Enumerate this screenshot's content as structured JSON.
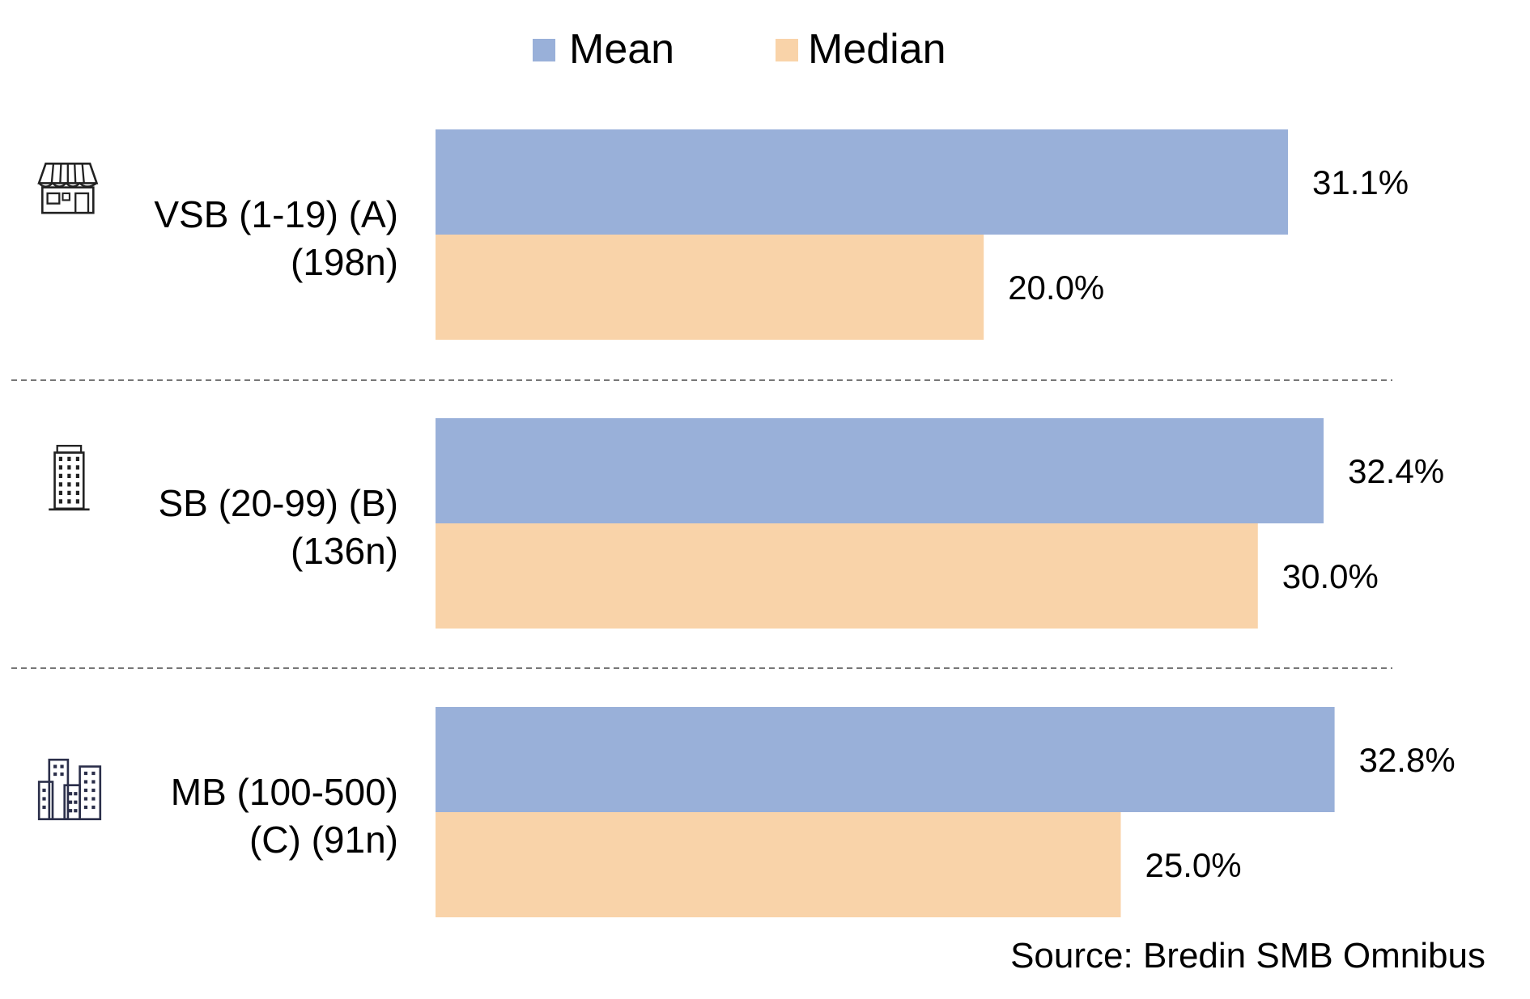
{
  "chart_data": {
    "type": "bar",
    "orientation": "horizontal",
    "categories": [
      {
        "lines": [
          "VSB (1-19) (A)",
          "(198n)"
        ],
        "icon": "storefront-icon"
      },
      {
        "lines": [
          "SB (20-99) (B)",
          "(136n)"
        ],
        "icon": "office-tower-icon"
      },
      {
        "lines": [
          "MB (100-500)",
          "(C) (91n)"
        ],
        "icon": "city-buildings-icon"
      }
    ],
    "series": [
      {
        "name": "Mean",
        "color": "#99B0D9",
        "values": [
          31.1,
          32.4,
          32.8
        ],
        "labels": [
          "31.1%",
          "32.4%",
          "32.8%"
        ]
      },
      {
        "name": "Median",
        "color": "#F9D3A9",
        "values": [
          20.0,
          30.0,
          25.0
        ],
        "labels": [
          "20.0%",
          "30.0%",
          "25.0%"
        ]
      }
    ],
    "xlim": [
      0,
      36
    ],
    "grid": false,
    "legend_position": "top-center",
    "separators": "dashed",
    "source": "Source: Bredin SMB Omnibus"
  }
}
